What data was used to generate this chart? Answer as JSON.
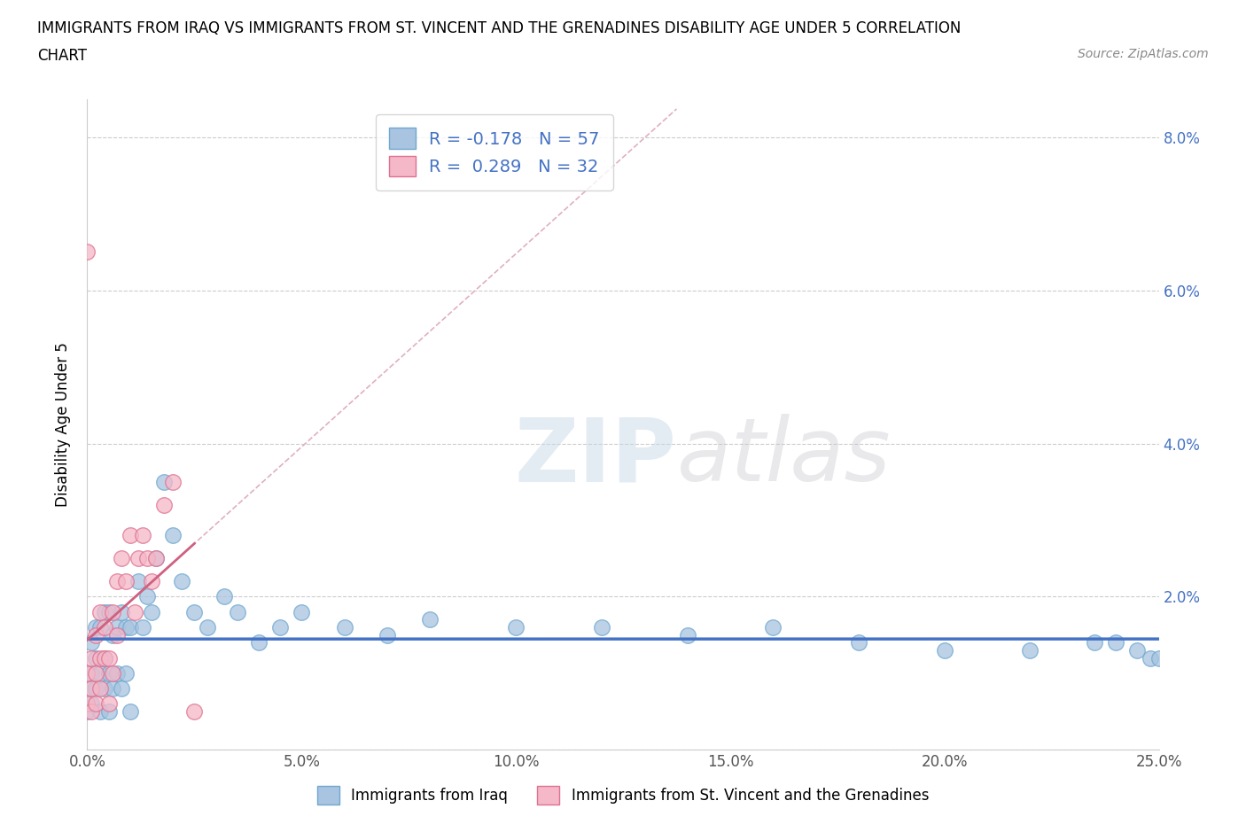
{
  "title_line1": "IMMIGRANTS FROM IRAQ VS IMMIGRANTS FROM ST. VINCENT AND THE GRENADINES DISABILITY AGE UNDER 5 CORRELATION",
  "title_line2": "CHART",
  "source_text": "Source: ZipAtlas.com",
  "ylabel": "Disability Age Under 5",
  "xlim": [
    0.0,
    0.25
  ],
  "ylim": [
    0.0,
    0.085
  ],
  "xticks": [
    0.0,
    0.05,
    0.1,
    0.15,
    0.2,
    0.25
  ],
  "xticklabels": [
    "0.0%",
    "5.0%",
    "10.0%",
    "15.0%",
    "20.0%",
    "25.0%"
  ],
  "yticks": [
    0.0,
    0.02,
    0.04,
    0.06,
    0.08
  ],
  "yticklabels": [
    "",
    "2.0%",
    "4.0%",
    "6.0%",
    "8.0%"
  ],
  "iraq_color": "#a8c4e0",
  "iraq_edge_color": "#6fa8d0",
  "svg_color": "#f4b8c8",
  "svg_edge_color": "#e07090",
  "iraq_line_color": "#4472C4",
  "svg_line_color": "#d06080",
  "diag_line_color": "#e0b0c0",
  "R_iraq": -0.178,
  "N_iraq": 57,
  "R_svg": 0.289,
  "N_svg": 32,
  "legend_iraq_label": "Immigrants from Iraq",
  "legend_svg_label": "Immigrants from St. Vincent and the Grenadines",
  "watermark_zip": "ZIP",
  "watermark_atlas": "atlas",
  "iraq_x": [
    0.0,
    0.0,
    0.001,
    0.001,
    0.001,
    0.002,
    0.002,
    0.002,
    0.003,
    0.003,
    0.003,
    0.004,
    0.004,
    0.004,
    0.005,
    0.005,
    0.005,
    0.006,
    0.006,
    0.007,
    0.007,
    0.008,
    0.008,
    0.009,
    0.009,
    0.01,
    0.01,
    0.012,
    0.013,
    0.014,
    0.015,
    0.016,
    0.018,
    0.02,
    0.022,
    0.025,
    0.028,
    0.032,
    0.035,
    0.04,
    0.045,
    0.05,
    0.06,
    0.07,
    0.08,
    0.1,
    0.12,
    0.14,
    0.16,
    0.18,
    0.2,
    0.22,
    0.235,
    0.24,
    0.245,
    0.248,
    0.25
  ],
  "iraq_y": [
    0.005,
    0.008,
    0.006,
    0.01,
    0.014,
    0.008,
    0.012,
    0.016,
    0.005,
    0.01,
    0.016,
    0.008,
    0.012,
    0.018,
    0.005,
    0.01,
    0.018,
    0.008,
    0.015,
    0.01,
    0.016,
    0.008,
    0.018,
    0.01,
    0.016,
    0.005,
    0.016,
    0.022,
    0.016,
    0.02,
    0.018,
    0.025,
    0.035,
    0.028,
    0.022,
    0.018,
    0.016,
    0.02,
    0.018,
    0.014,
    0.016,
    0.018,
    0.016,
    0.015,
    0.017,
    0.016,
    0.016,
    0.015,
    0.016,
    0.014,
    0.013,
    0.013,
    0.014,
    0.014,
    0.013,
    0.012,
    0.012
  ],
  "svg_x": [
    0.0,
    0.0,
    0.0,
    0.001,
    0.001,
    0.001,
    0.002,
    0.002,
    0.002,
    0.003,
    0.003,
    0.003,
    0.004,
    0.004,
    0.005,
    0.005,
    0.006,
    0.006,
    0.007,
    0.007,
    0.008,
    0.009,
    0.01,
    0.011,
    0.012,
    0.013,
    0.014,
    0.015,
    0.016,
    0.018,
    0.02,
    0.025
  ],
  "svg_y": [
    0.065,
    0.006,
    0.01,
    0.005,
    0.008,
    0.012,
    0.006,
    0.01,
    0.015,
    0.008,
    0.012,
    0.018,
    0.012,
    0.016,
    0.006,
    0.012,
    0.01,
    0.018,
    0.015,
    0.022,
    0.025,
    0.022,
    0.028,
    0.018,
    0.025,
    0.028,
    0.025,
    0.022,
    0.025,
    0.032,
    0.035,
    0.005
  ]
}
